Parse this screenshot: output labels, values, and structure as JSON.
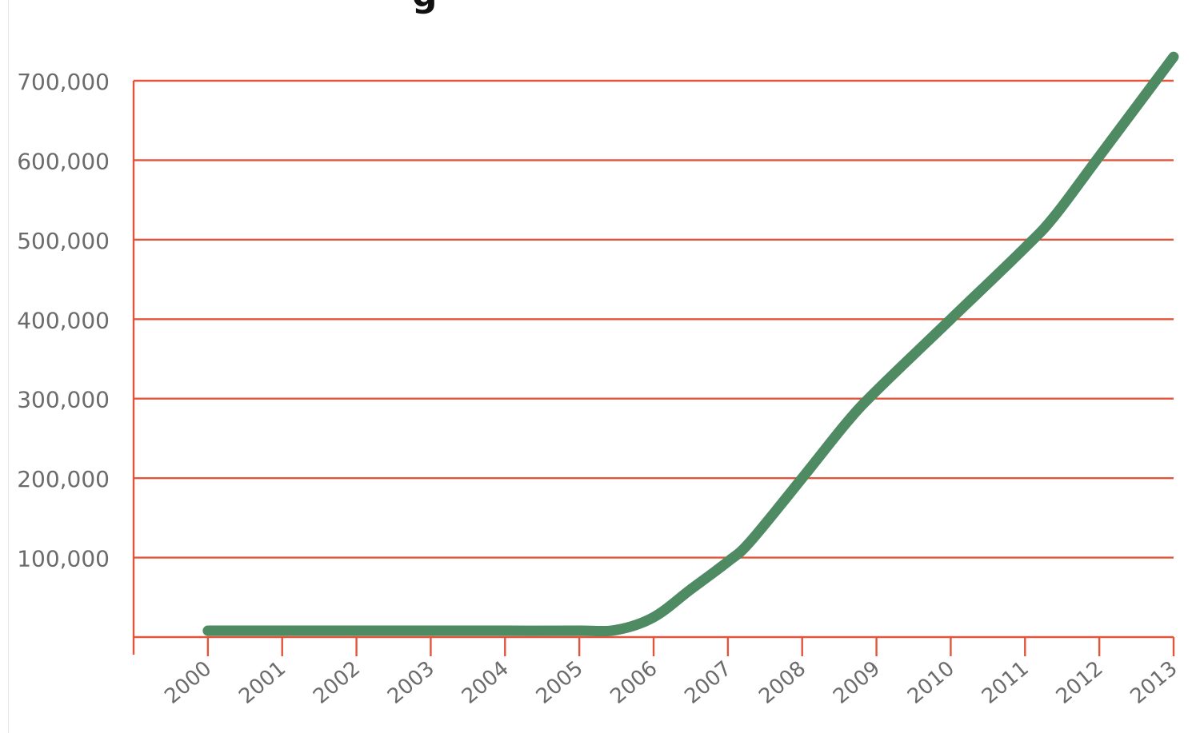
{
  "title_fragment": "g",
  "colors": {
    "grid": "#e2553a",
    "line": "#4e8a62",
    "tick_text": "#6b6b6b"
  },
  "chart_data": {
    "type": "line",
    "title": "",
    "xlabel": "",
    "ylabel": "",
    "x_tick_labels": [
      "2000",
      "2001",
      "2002",
      "2003",
      "2004",
      "2005",
      "2006",
      "2007",
      "2008",
      "2009",
      "2010",
      "2011",
      "2012",
      "2013"
    ],
    "y_tick_labels": [
      "100,000",
      "200,000",
      "300,000",
      "400,000",
      "500,000",
      "600,000",
      "700,000"
    ],
    "y_ticks": [
      100000,
      200000,
      300000,
      400000,
      500000,
      600000,
      700000
    ],
    "ylim": [
      0,
      700000
    ],
    "xlim": [
      1999,
      2013
    ],
    "grid": true,
    "legend": "none",
    "series": [
      {
        "x": [
          2000,
          2001,
          2002,
          2003,
          2004,
          2005,
          2005.5,
          2006,
          2006.5,
          2007,
          2007.3,
          2008,
          2008.6,
          2009,
          2010,
          2011,
          2011.4,
          2012,
          2013
        ],
        "values": [
          8000,
          8000,
          8000,
          8000,
          8000,
          8000,
          9000,
          25000,
          60000,
          95000,
          120000,
          200000,
          270000,
          310000,
          400000,
          490000,
          530000,
          605000,
          730000
        ]
      }
    ]
  }
}
